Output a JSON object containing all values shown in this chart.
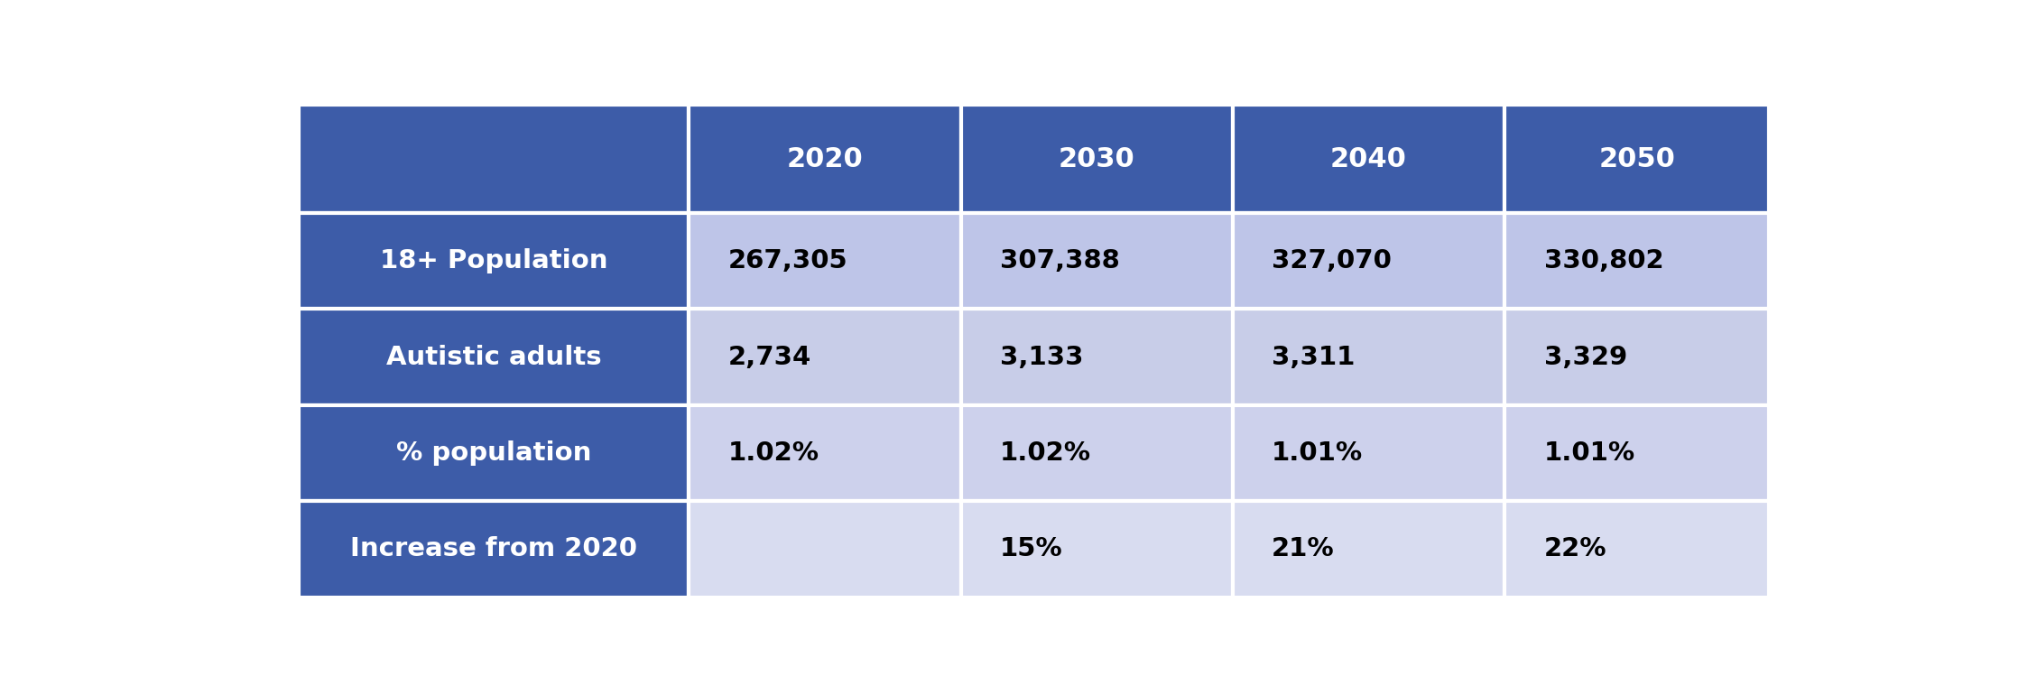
{
  "columns": [
    "",
    "2020",
    "2030",
    "2040",
    "2050"
  ],
  "rows": [
    [
      "18+ Population",
      "267,305",
      "307,388",
      "327,070",
      "330,802"
    ],
    [
      "Autistic adults",
      "2,734",
      "3,133",
      "3,311",
      "3,329"
    ],
    [
      "% population",
      "1.02%",
      "1.02%",
      "1.01%",
      "1.01%"
    ],
    [
      "Increase from 2020",
      "",
      "15%",
      "21%",
      "22%"
    ]
  ],
  "header_bg_color": "#3D5CA8",
  "header_text_color": "#FFFFFF",
  "row_label_bg_color": "#3D5CA8",
  "row_label_text_color": "#FFFFFF",
  "data_bg_colors": [
    "#BEC5E8",
    "#C8CDE8",
    "#CDD1EC",
    "#D8DCF0"
  ],
  "last_row_data_bg_color": "#E0E4F4",
  "data_text_color": "#000000",
  "border_color": "#FFFFFF",
  "figsize": [
    22.36,
    7.7
  ],
  "dpi": 100,
  "outer_bg": "#FFFFFF"
}
